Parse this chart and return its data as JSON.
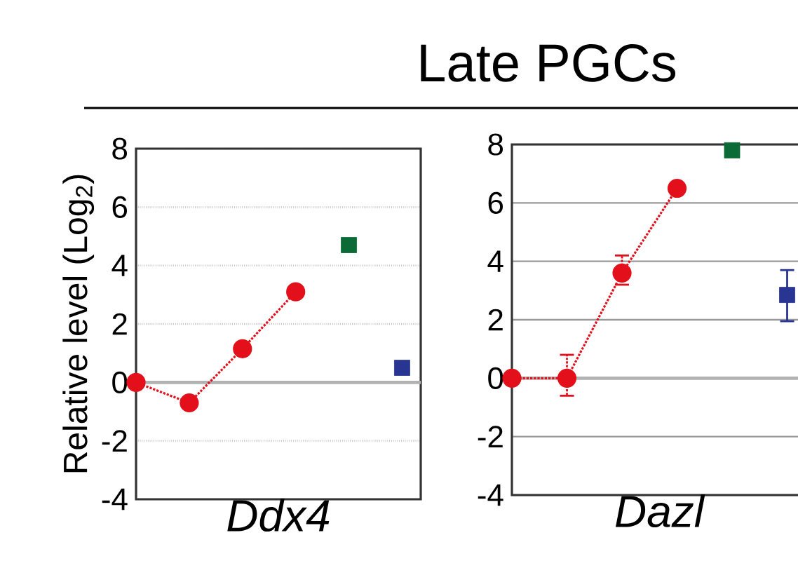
{
  "chart_data": [
    {
      "type": "line",
      "xlabel": "Ddx4",
      "ref_lines": [
        {
          "axis": "y",
          "value": 0,
          "color": "#b2b2b2"
        }
      ],
      "ylabel": "Relative level (Log$_{2}$)",
      "categories": [
        null,
        null,
        null,
        null,
        null,
        null
      ],
      "ylim": [
        -4,
        8
      ],
      "yticks": [
        -4,
        -2,
        0,
        2,
        4,
        6,
        8
      ],
      "grid": "y",
      "series": [
        {
          "color": "#e3101b",
          "marker": "circle",
          "line_style": "dotted",
          "values": [
            0,
            -0.7,
            1.15,
            3.1,
            null,
            null
          ]
        },
        {
          "type": "scatter",
          "color": "#0b6a35",
          "marker": "square",
          "values": [
            null,
            null,
            null,
            null,
            4.7,
            null
          ]
        },
        {
          "type": "scatter",
          "color": "#283593",
          "marker": "square",
          "values": [
            null,
            null,
            null,
            null,
            null,
            0.5
          ]
        }
      ]
    },
    {
      "type": "line",
      "xlabel": "Dazl",
      "ref_lines": [
        {
          "axis": "y",
          "value": 0,
          "color": "#b2b2b2"
        }
      ],
      "categories": [
        null,
        null,
        null,
        null,
        null,
        null
      ],
      "ylim": [
        -4,
        8
      ],
      "yticks": [
        -4,
        -2,
        0,
        2,
        4,
        6,
        8
      ],
      "grid": "y",
      "series": [
        {
          "color": "#e3101b",
          "marker": "circle",
          "line_style": "dotted",
          "values": [
            0,
            0,
            3.6,
            6.5,
            null,
            null
          ],
          "errors": [
            null,
            [
              -0.6,
              0.8
            ],
            [
              3.2,
              4.2
            ],
            null,
            null,
            null
          ]
        },
        {
          "type": "scatter",
          "color": "#0b6a35",
          "marker": "square",
          "values": [
            null,
            null,
            null,
            null,
            7.8,
            null
          ]
        },
        {
          "type": "scatter",
          "color": "#283593",
          "marker": "square",
          "values": [
            null,
            null,
            null,
            null,
            null,
            2.85
          ],
          "errors": [
            null,
            null,
            null,
            null,
            null,
            [
              1.95,
              3.7
            ]
          ]
        }
      ]
    },
    {
      "type": "other",
      "title": "Late PGCs"
    }
  ]
}
